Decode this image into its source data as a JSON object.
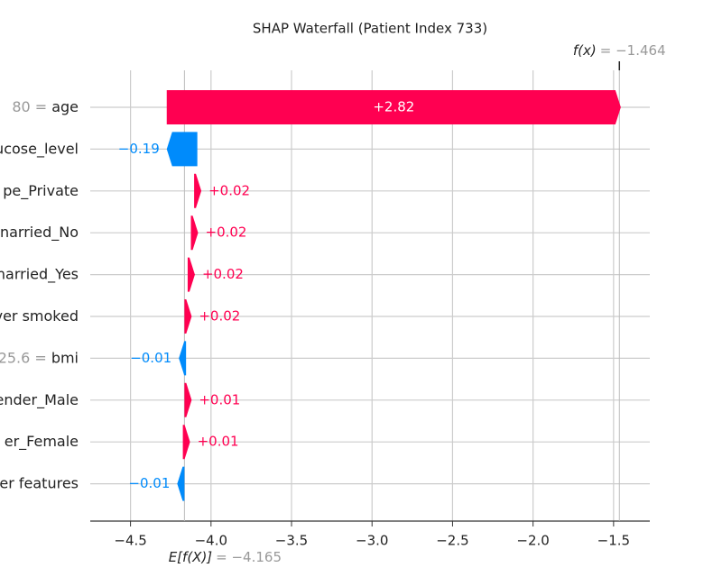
{
  "chart_data": {
    "type": "waterfall",
    "title": "SHAP Waterfall (Patient Index 733)",
    "categories": [
      {
        "value_text": "80 =",
        "name": "age"
      },
      {
        "name": "ucose_level"
      },
      {
        "name": "pe_Private"
      },
      {
        "name": "narried_No"
      },
      {
        "name": "narried_Yes"
      },
      {
        "name": "ver smoked"
      },
      {
        "value_text": "25.6 =",
        "name": "bmi"
      },
      {
        "name": "ender_Male"
      },
      {
        "name": "er_Female"
      },
      {
        "name": "er features"
      }
    ],
    "values": [
      2.82,
      -0.19,
      0.02,
      0.02,
      0.02,
      0.02,
      -0.01,
      0.01,
      0.01,
      -0.01
    ],
    "value_labels": [
      "+2.82",
      "−0.19",
      "+0.02",
      "+0.02",
      "+0.02",
      "+0.02",
      "−0.01",
      "+0.01",
      "+0.01",
      "−0.01"
    ],
    "base_name": "E[f(X)]",
    "base_value": {
      "value": -4.165,
      "label": "= −4.165"
    },
    "output_name": "f(x)",
    "output_value": {
      "value": -1.464,
      "label": "= −1.464"
    },
    "positive_color": "#ff0051",
    "negative_color": "#008bfb",
    "xlim": [
      -4.75,
      -1.275
    ],
    "xticks": [
      {
        "value": -4.5,
        "label": "−4.5"
      },
      {
        "value": -4.0,
        "label": "−4.0"
      },
      {
        "value": -3.5,
        "label": "−3.5"
      },
      {
        "value": -3.0,
        "label": "−3.0"
      },
      {
        "value": -2.5,
        "label": "−2.5"
      },
      {
        "value": -2.0,
        "label": "−2.0"
      },
      {
        "value": -1.5,
        "label": "−1.5"
      }
    ],
    "grid": true
  }
}
